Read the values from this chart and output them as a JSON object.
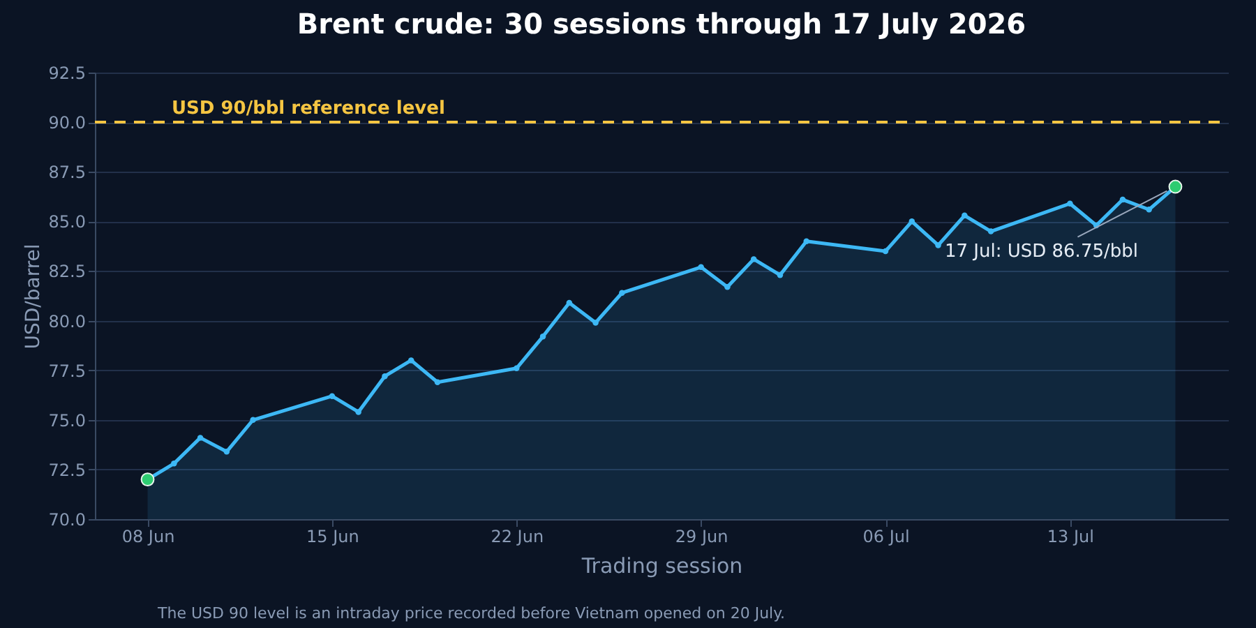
{
  "chart_data": {
    "type": "area",
    "title": "Brent crude: 30 sessions through 17 July 2026",
    "xlabel": "Trading session",
    "ylabel": "USD/barrel",
    "x": [
      "2026-06-08",
      "2026-06-09",
      "2026-06-10",
      "2026-06-11",
      "2026-06-12",
      "2026-06-15",
      "2026-06-16",
      "2026-06-17",
      "2026-06-18",
      "2026-06-19",
      "2026-06-22",
      "2026-06-23",
      "2026-06-24",
      "2026-06-25",
      "2026-06-26",
      "2026-06-29",
      "2026-06-30",
      "2026-07-01",
      "2026-07-02",
      "2026-07-03",
      "2026-07-06",
      "2026-07-07",
      "2026-07-08",
      "2026-07-09",
      "2026-07-10",
      "2026-07-13",
      "2026-07-14",
      "2026-07-15",
      "2026-07-16",
      "2026-07-17"
    ],
    "series": [
      {
        "color": "#3db8f5",
        "values": [
          72.0,
          72.8,
          74.1,
          73.4,
          75.0,
          76.2,
          75.4,
          77.2,
          78.0,
          76.9,
          77.6,
          79.2,
          80.9,
          79.9,
          81.4,
          82.7,
          81.7,
          83.1,
          82.3,
          84.0,
          83.5,
          85.0,
          83.8,
          85.3,
          84.5,
          85.9,
          84.8,
          86.1,
          85.6,
          86.75
        ]
      },
      {
        "type": "scatter",
        "color": "#2ecc71",
        "x": [
          "2026-06-08",
          "2026-07-17"
        ],
        "values": [
          72.0,
          86.75
        ]
      }
    ],
    "marker": "circle",
    "grid": "y",
    "xlim": [
      "2026-06-06",
      "2026-07-19"
    ],
    "xticks": [
      {
        "value": "2026-06-08",
        "label": "08 Jun"
      },
      {
        "value": "2026-06-15",
        "label": "15 Jun"
      },
      {
        "value": "2026-06-22",
        "label": "22 Jun"
      },
      {
        "value": "2026-06-29",
        "label": "29 Jun"
      },
      {
        "value": "2026-07-06",
        "label": "06 Jul"
      },
      {
        "value": "2026-07-13",
        "label": "13 Jul"
      }
    ],
    "ylim": [
      70,
      92.5
    ],
    "yticks": [
      {
        "value": 70,
        "label": "70.0"
      },
      {
        "value": 72.5,
        "label": "72.5"
      },
      {
        "value": 75,
        "label": "75.0"
      },
      {
        "value": 77.5,
        "label": "77.5"
      },
      {
        "value": 80,
        "label": "80.0"
      },
      {
        "value": 82.5,
        "label": "82.5"
      },
      {
        "value": 85,
        "label": "85.0"
      },
      {
        "value": 87.5,
        "label": "87.5"
      },
      {
        "value": 90,
        "label": "90.0"
      },
      {
        "value": 92.5,
        "label": "92.5"
      }
    ],
    "ref_lines": [
      {
        "axis": "y",
        "value": 90,
        "label": "USD 90/bbl reference level",
        "color": "#f5c542",
        "line_style": "dashed"
      }
    ],
    "annotations": [
      {
        "text": "17 Jul: USD 86.75/bbl",
        "x": "2026-07-17",
        "y": 86.75
      },
      "The USD 90 level is an intraday price recorded before Vietnam opened on 20 July."
    ]
  }
}
